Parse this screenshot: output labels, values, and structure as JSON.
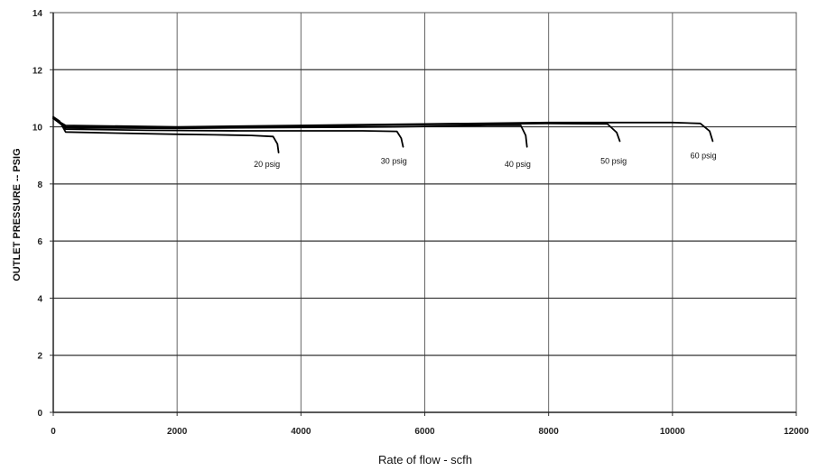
{
  "chart_data": {
    "type": "line",
    "title": "",
    "xlabel": "Rate of flow - scfh",
    "ylabel": "OUTLET PRESSURE -- PSIG",
    "xlim": [
      0,
      12000
    ],
    "ylim": [
      0,
      14
    ],
    "xticks": [
      "0",
      "2000",
      "4000",
      "6000",
      "8000",
      "10000",
      "12000"
    ],
    "yticks": [
      "0",
      "2",
      "4",
      "6",
      "8",
      "10",
      "12",
      "14"
    ],
    "grid": true,
    "legend": "none",
    "line_color": "#000000",
    "series": [
      {
        "label": "20 psig",
        "label_at": [
          3450,
          8.6
        ],
        "points": [
          [
            0,
            10.35
          ],
          [
            100,
            10.2
          ],
          [
            200,
            9.82
          ],
          [
            1000,
            9.78
          ],
          [
            2000,
            9.74
          ],
          [
            2600,
            9.72
          ],
          [
            3200,
            9.7
          ],
          [
            3550,
            9.66
          ],
          [
            3620,
            9.4
          ],
          [
            3640,
            9.1
          ]
        ]
      },
      {
        "label": "30 psig",
        "label_at": [
          5500,
          8.7
        ],
        "points": [
          [
            0,
            10.3
          ],
          [
            150,
            10.1
          ],
          [
            200,
            9.92
          ],
          [
            1500,
            9.88
          ],
          [
            3000,
            9.86
          ],
          [
            4200,
            9.86
          ],
          [
            5000,
            9.86
          ],
          [
            5550,
            9.84
          ],
          [
            5620,
            9.6
          ],
          [
            5650,
            9.3
          ]
        ]
      },
      {
        "label": "40 psig",
        "label_at": [
          7500,
          8.6
        ],
        "points": [
          [
            0,
            10.3
          ],
          [
            150,
            10.05
          ],
          [
            200,
            9.97
          ],
          [
            2000,
            9.95
          ],
          [
            4000,
            9.98
          ],
          [
            5500,
            10.0
          ],
          [
            7000,
            10.05
          ],
          [
            7550,
            10.05
          ],
          [
            7630,
            9.7
          ],
          [
            7650,
            9.3
          ]
        ]
      },
      {
        "label": "50 psig",
        "label_at": [
          9050,
          8.7
        ],
        "points": [
          [
            0,
            10.3
          ],
          [
            200,
            10.0
          ],
          [
            2000,
            9.98
          ],
          [
            4000,
            10.02
          ],
          [
            6000,
            10.08
          ],
          [
            8000,
            10.12
          ],
          [
            8950,
            10.1
          ],
          [
            9100,
            9.8
          ],
          [
            9150,
            9.5
          ]
        ]
      },
      {
        "label": "60 psig",
        "label_at": [
          10500,
          8.9
        ],
        "points": [
          [
            0,
            10.3
          ],
          [
            200,
            10.05
          ],
          [
            2000,
            10.0
          ],
          [
            4000,
            10.05
          ],
          [
            6000,
            10.1
          ],
          [
            8000,
            10.15
          ],
          [
            10000,
            10.15
          ],
          [
            10450,
            10.12
          ],
          [
            10600,
            9.85
          ],
          [
            10650,
            9.5
          ]
        ]
      }
    ]
  }
}
